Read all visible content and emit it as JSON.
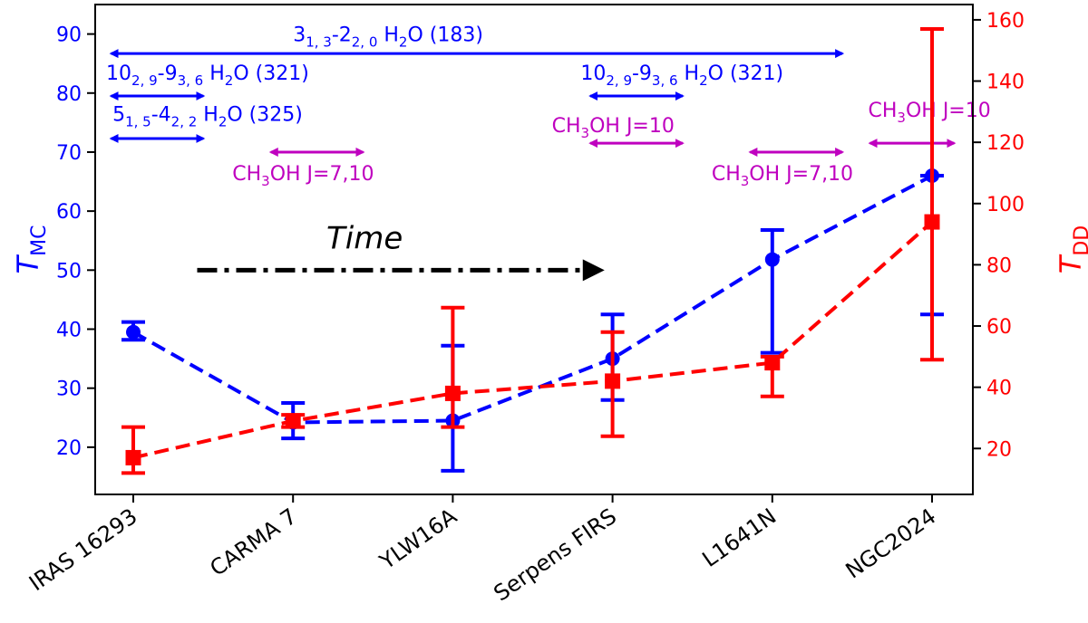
{
  "chart_data": {
    "type": "line",
    "categories": [
      "IRAS 16293",
      "CARMA 7",
      "YLW16A",
      "Serpens FIRS",
      "L1641N",
      "NGC2024"
    ],
    "left_axis": {
      "label": "T",
      "label_sub": "MC",
      "ylim": [
        12,
        95
      ],
      "ticks": [
        20,
        30,
        40,
        50,
        60,
        70,
        80,
        90
      ],
      "color": "#0000ff"
    },
    "right_axis": {
      "label": "T",
      "label_sub": "DD",
      "ylim": [
        5,
        165
      ],
      "ticks": [
        20,
        40,
        60,
        80,
        100,
        120,
        140,
        160
      ],
      "color": "#ff0000"
    },
    "series": [
      {
        "name": "T_MC",
        "axis": "left",
        "color": "#0000ff",
        "marker": "circle",
        "values": [
          39.5,
          24.2,
          24.5,
          35.0,
          51.8,
          66.0
        ],
        "err_low": [
          38.2,
          21.5,
          16.0,
          28.0,
          36.0,
          42.5
        ],
        "err_high": [
          41.2,
          27.5,
          37.2,
          42.5,
          56.8,
          66.0
        ]
      },
      {
        "name": "T_DD",
        "axis": "right",
        "color": "#ff0000",
        "marker": "square",
        "values": [
          17,
          29,
          38,
          42,
          48,
          94
        ],
        "err_low": [
          12,
          27,
          27,
          24,
          37,
          49
        ],
        "err_high": [
          27,
          31,
          66,
          58,
          50,
          157
        ]
      }
    ],
    "time_arrow": {
      "label": "Time",
      "from": 0.4,
      "to": 2.95,
      "at": 50
    },
    "annotations": [
      {
        "pre": "3",
        "sub1": "1, 3",
        "mid": "-2",
        "sub2": "2, 0",
        "post": " H",
        "sub3": "2",
        "tail": "O (183)",
        "color": "#0000ff",
        "from": -0.15,
        "to": 4.45,
        "y": 86.7,
        "text_x": 1.0,
        "text_y": 88.8
      },
      {
        "pre": "10",
        "sub1": "2, 9",
        "mid": "-9",
        "sub2": "3, 6",
        "post": " H",
        "sub3": "2",
        "tail": "O (321)",
        "color": "#0000ff",
        "from": -0.15,
        "to": 0.45,
        "y": 79.5,
        "text_x": -0.17,
        "text_y": 82.3
      },
      {
        "pre": "5",
        "sub1": "1, 5",
        "mid": "-4",
        "sub2": "2, 2",
        "post": " H",
        "sub3": "2",
        "tail": "O (325)",
        "color": "#0000ff",
        "from": -0.15,
        "to": 0.45,
        "y": 72.3,
        "text_x": -0.13,
        "text_y": 75.3
      },
      {
        "pre": "10",
        "sub1": "2, 9",
        "mid": "-9",
        "sub2": "3, 6",
        "post": " H",
        "sub3": "2",
        "tail": "O (321)",
        "color": "#0000ff",
        "from": 2.85,
        "to": 3.45,
        "y": 79.5,
        "text_x": 2.8,
        "text_y": 82.3
      },
      {
        "pre": "CH",
        "sub1": "3",
        "mid": "OH J=7,10",
        "color": "#bf00bf",
        "from": 0.85,
        "to": 1.45,
        "y": 70.0,
        "text_x": 0.62,
        "text_y": 65.2
      },
      {
        "pre": "CH",
        "sub1": "3",
        "mid": "OH J=10",
        "color": "#bf00bf",
        "from": 2.85,
        "to": 3.45,
        "y": 71.5,
        "text_x": 2.62,
        "text_y": 73.4
      },
      {
        "pre": "CH",
        "sub1": "3",
        "mid": "OH J=7,10",
        "color": "#bf00bf",
        "from": 3.85,
        "to": 4.45,
        "y": 70.0,
        "text_x": 3.62,
        "text_y": 65.2
      },
      {
        "pre": "CH",
        "sub1": "3",
        "mid": "OH J=10",
        "color": "#bf00bf",
        "from": 4.6,
        "to": 5.15,
        "y": 71.5,
        "text_x": 4.6,
        "text_y": 76.0
      }
    ]
  }
}
